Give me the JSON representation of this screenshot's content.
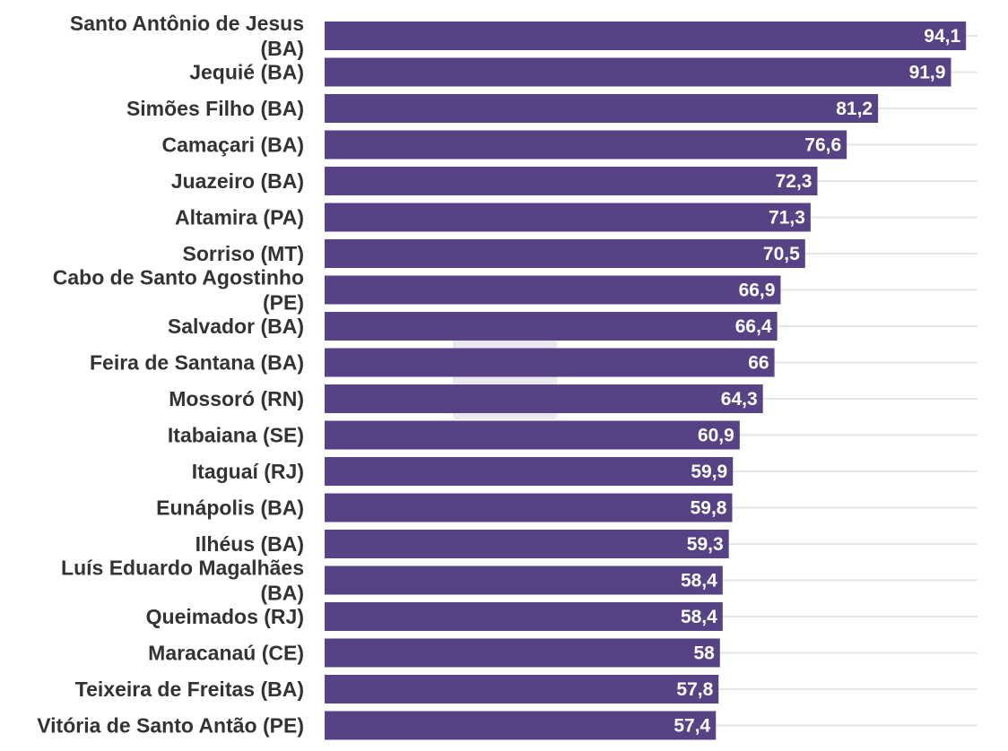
{
  "chart_data": {
    "type": "bar",
    "orientation": "horizontal",
    "categories": [
      "Santo Antônio de Jesus (BA)",
      "Jequié (BA)",
      "Simões Filho (BA)",
      "Camaçari (BA)",
      "Juazeiro (BA)",
      "Altamira (PA)",
      "Sorriso (MT)",
      "Cabo de Santo Agostinho (PE)",
      "Salvador (BA)",
      "Feira de Santana (BA)",
      "Mossoró (RN)",
      "Itabaiana (SE)",
      "Itaguaí (RJ)",
      "Eunápolis (BA)",
      "Ilhéus (BA)",
      "Luís Eduardo Magalhães (BA)",
      "Queimados (RJ)",
      "Maracanaú (CE)",
      "Teixeira de Freitas (BA)",
      "Vitória de Santo Antão (PE)"
    ],
    "category_lines": [
      [
        "Santo Antônio de Jesus",
        "(BA)"
      ],
      [
        "Jequié (BA)"
      ],
      [
        "Simões Filho (BA)"
      ],
      [
        "Camaçari (BA)"
      ],
      [
        "Juazeiro (BA)"
      ],
      [
        "Altamira (PA)"
      ],
      [
        "Sorriso (MT)"
      ],
      [
        "Cabo de Santo Agostinho",
        "(PE)"
      ],
      [
        "Salvador (BA)"
      ],
      [
        "Feira de Santana (BA)"
      ],
      [
        "Mossoró (RN)"
      ],
      [
        "Itabaiana (SE)"
      ],
      [
        "Itaguaí (RJ)"
      ],
      [
        "Eunápolis (BA)"
      ],
      [
        "Ilhéus (BA)"
      ],
      [
        "Luís Eduardo Magalhães",
        "(BA)"
      ],
      [
        "Queimados (RJ)"
      ],
      [
        "Maracanaú (CE)"
      ],
      [
        "Teixeira de Freitas (BA)"
      ],
      [
        "Vitória de Santo Antão (PE)"
      ]
    ],
    "values": [
      94.1,
      91.9,
      81.2,
      76.6,
      72.3,
      71.3,
      70.5,
      66.9,
      66.4,
      66,
      64.3,
      60.9,
      59.9,
      59.8,
      59.3,
      58.4,
      58.4,
      58,
      57.8,
      57.4
    ],
    "value_labels": [
      "94,1",
      "91,9",
      "81,2",
      "76,6",
      "72,3",
      "71,3",
      "70,5",
      "66,9",
      "66,4",
      "66",
      "64,3",
      "60,9",
      "59,9",
      "59,8",
      "59,3",
      "58,4",
      "58,4",
      "58",
      "57,8",
      "57,4"
    ],
    "title": "",
    "xlabel": "",
    "ylabel": "",
    "xlim": [
      0,
      100
    ],
    "grid": true,
    "legend": "none",
    "bar_color": "#574286",
    "value_label_color": "#ffffff",
    "category_label_color": "#333333",
    "grid_color": "#e6e6e6"
  }
}
